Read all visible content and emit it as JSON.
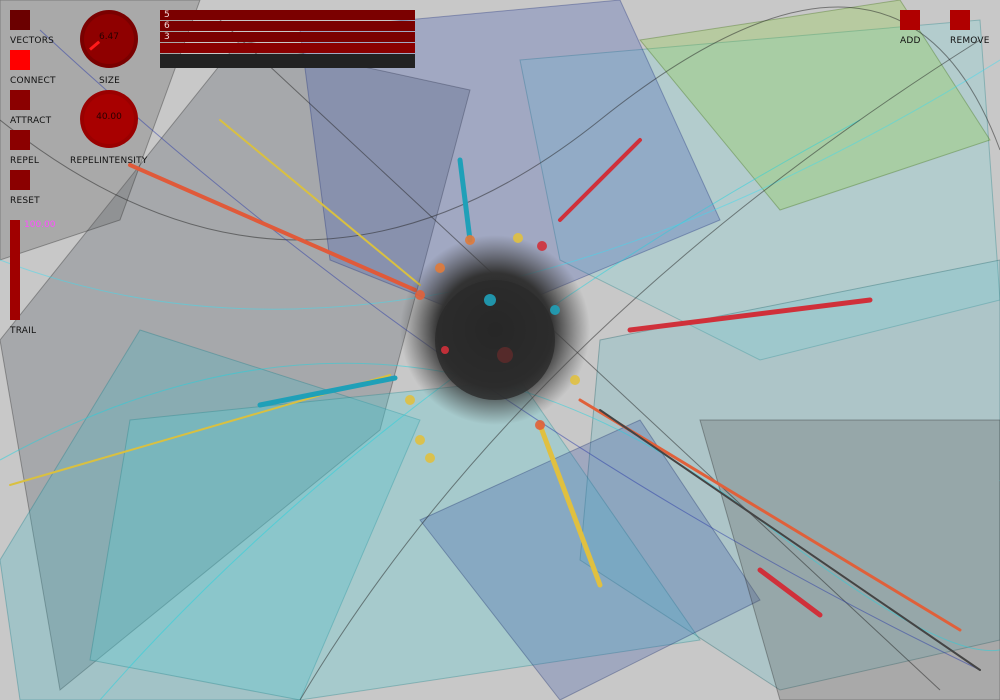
{
  "controls": {
    "vectors": {
      "label": "VECTORS",
      "on": false,
      "color": "#6b0000"
    },
    "connect": {
      "label": "CONNECT",
      "on": true,
      "color": "#ff0000"
    },
    "attract": {
      "label": "ATTRACT",
      "on": false,
      "color": "#8b0000"
    },
    "repel": {
      "label": "REPEL",
      "on": false,
      "color": "#8b0000"
    },
    "reset": {
      "label": "RESET",
      "color": "#8b0000"
    },
    "add": {
      "label": "ADD",
      "color": "#b00000"
    },
    "remove": {
      "label": "REMOVE",
      "color": "#b00000"
    }
  },
  "knobs": {
    "size": {
      "label": "SIZE",
      "value": "6.47"
    },
    "repel_intensity": {
      "label": "REPELINTENSITY",
      "value": "40.00"
    }
  },
  "radio_list": {
    "items": [
      "5",
      "6",
      "3",
      "",
      ""
    ]
  },
  "trail": {
    "label": "TRAIL",
    "value": "100.00",
    "level": 1.0
  },
  "icons": {
    "knob": "rotary-knob-icon",
    "toggle": "square-toggle-icon"
  }
}
